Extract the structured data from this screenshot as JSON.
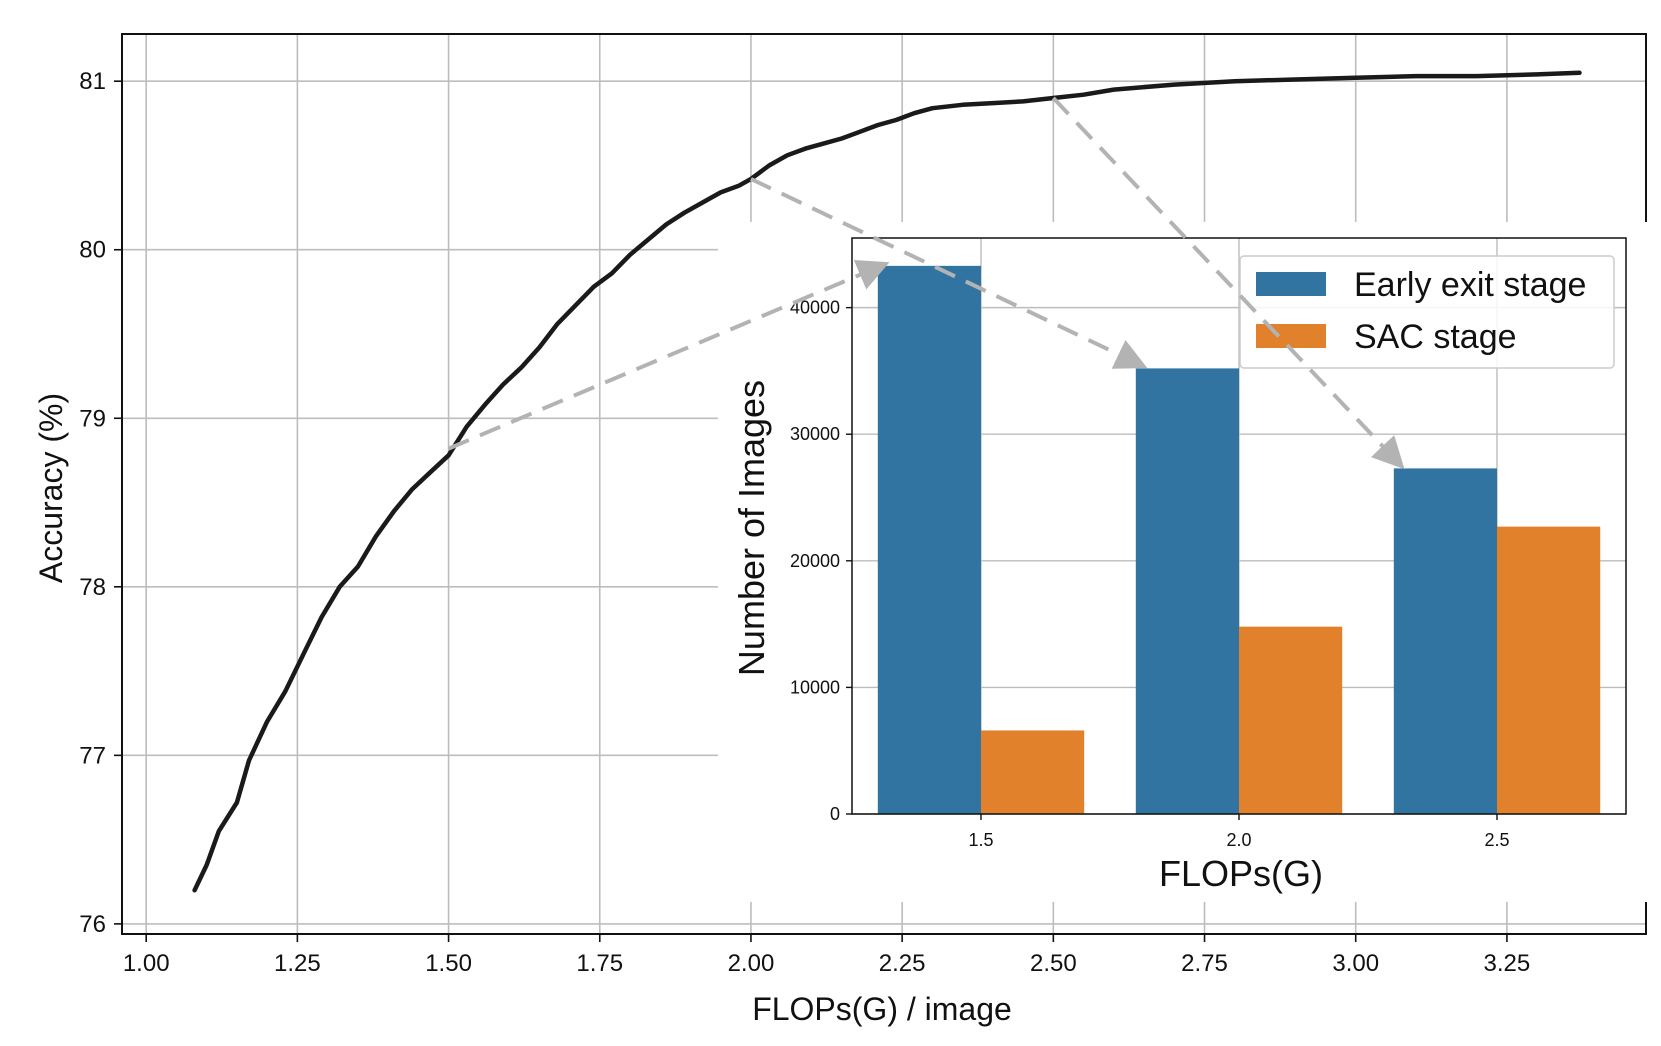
{
  "chart_data": [
    {
      "type": "line",
      "title": "",
      "xlabel": "FLOPs(G) / image",
      "ylabel": "Accuracy (%)",
      "xlim": [
        0.96,
        3.48
      ],
      "ylim": [
        75.94,
        81.28
      ],
      "xticks": [
        "1.00",
        "1.25",
        "1.50",
        "1.75",
        "2.00",
        "2.25",
        "2.50",
        "2.75",
        "3.00",
        "3.25"
      ],
      "yticks": [
        "76",
        "77",
        "78",
        "79",
        "80",
        "81"
      ],
      "grid": true,
      "series": [
        {
          "color": "#1a1a1a",
          "x": [
            1.08,
            1.1,
            1.12,
            1.15,
            1.17,
            1.2,
            1.23,
            1.26,
            1.29,
            1.32,
            1.35,
            1.38,
            1.41,
            1.44,
            1.47,
            1.5,
            1.53,
            1.56,
            1.59,
            1.62,
            1.65,
            1.68,
            1.71,
            1.74,
            1.77,
            1.8,
            1.83,
            1.86,
            1.89,
            1.92,
            1.95,
            1.98,
            2.0,
            2.03,
            2.06,
            2.09,
            2.12,
            2.15,
            2.18,
            2.21,
            2.24,
            2.27,
            2.3,
            2.35,
            2.4,
            2.45,
            2.5,
            2.55,
            2.6,
            2.7,
            2.8,
            2.9,
            3.0,
            3.1,
            3.2,
            3.3,
            3.37
          ],
          "y": [
            76.2,
            76.35,
            76.55,
            76.72,
            76.97,
            77.2,
            77.38,
            77.6,
            77.82,
            78.0,
            78.12,
            78.3,
            78.45,
            78.58,
            78.68,
            78.78,
            78.95,
            79.08,
            79.2,
            79.3,
            79.42,
            79.56,
            79.67,
            79.78,
            79.86,
            79.97,
            80.06,
            80.15,
            80.22,
            80.28,
            80.34,
            80.38,
            80.42,
            80.5,
            80.56,
            80.6,
            80.63,
            80.66,
            80.7,
            80.74,
            80.77,
            80.81,
            80.84,
            80.86,
            80.87,
            80.88,
            80.9,
            80.92,
            80.95,
            80.98,
            81.0,
            81.01,
            81.02,
            81.03,
            81.03,
            81.04,
            81.05
          ]
        }
      ]
    },
    {
      "type": "bar",
      "title": "",
      "xlabel": "FLOPs(G)",
      "ylabel": "Number of Images",
      "categories": [
        "1.5",
        "2.0",
        "2.5"
      ],
      "ylim": [
        0,
        45500
      ],
      "yticks": [
        "0",
        "10000",
        "20000",
        "30000",
        "40000"
      ],
      "grid": true,
      "legend_position": "top-right",
      "series": [
        {
          "name": "Early exit stage",
          "color": "#3274a1",
          "values": [
            43300,
            35200,
            27300
          ]
        },
        {
          "name": "SAC stage",
          "color": "#e1812c",
          "values": [
            6600,
            14800,
            22700
          ]
        }
      ]
    }
  ],
  "annotations": {
    "arrow_color": "#b3b3b3",
    "arrows": [
      {
        "from": {
          "x": 1.5,
          "y": 78.82
        },
        "to_inset": {
          "category": "1.5",
          "value": 43300
        }
      },
      {
        "from": {
          "x": 2.0,
          "y": 80.42
        },
        "to_inset": {
          "category": "2.0",
          "value": 35200
        }
      },
      {
        "from": {
          "x": 2.5,
          "y": 80.9
        },
        "to_inset": {
          "category": "2.5",
          "value": 27300
        }
      }
    ]
  }
}
